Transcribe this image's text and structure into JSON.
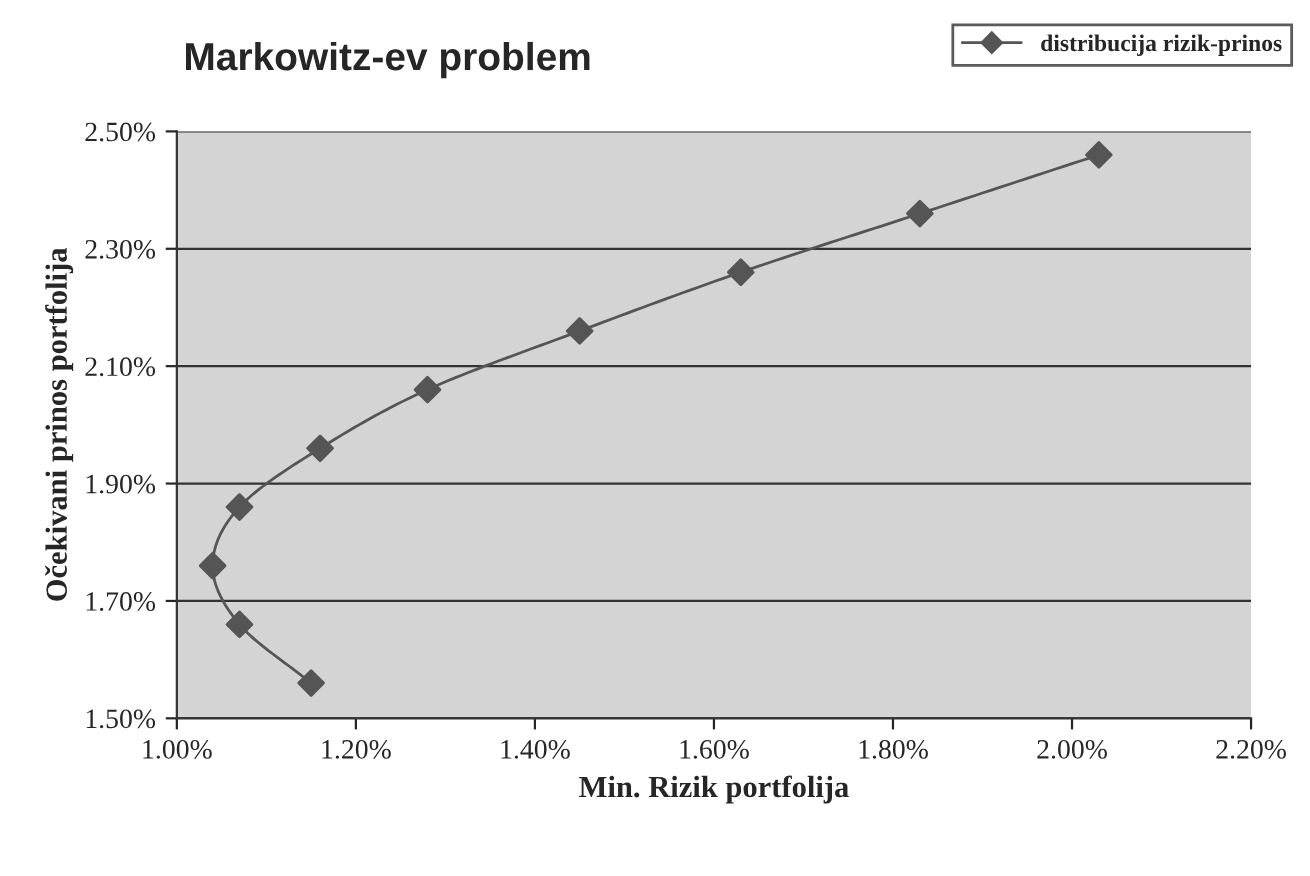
{
  "chart_data": {
    "type": "line",
    "title": "Markowitz-ev problem",
    "xlabel": "Min. Rizik portfolija",
    "ylabel": "Očekivani prinos portfolija",
    "series": [
      {
        "name": "distribucija rizik-prinos",
        "color": "#555555",
        "x": [
          1.15,
          1.07,
          1.04,
          1.07,
          1.16,
          1.28,
          1.45,
          1.63,
          1.83,
          2.03
        ],
        "values": [
          1.56,
          1.66,
          1.76,
          1.86,
          1.96,
          2.06,
          2.16,
          2.26,
          2.36,
          2.46
        ]
      }
    ],
    "xlim": [
      1.0,
      2.2
    ],
    "ylim": [
      1.5,
      2.5
    ],
    "xticks": [
      {
        "value": 1.0,
        "label": "1.00%"
      },
      {
        "value": 1.2,
        "label": "1.20%"
      },
      {
        "value": 1.4,
        "label": "1.40%"
      },
      {
        "value": 1.6,
        "label": "1.60%"
      },
      {
        "value": 1.8,
        "label": "1.80%"
      },
      {
        "value": 2.0,
        "label": "2.00%"
      },
      {
        "value": 2.2,
        "label": "2.20%"
      }
    ],
    "yticks": [
      {
        "value": 1.5,
        "label": "1.50%"
      },
      {
        "value": 1.7,
        "label": "1.70%"
      },
      {
        "value": 1.9,
        "label": "1.90%"
      },
      {
        "value": 2.1,
        "label": "2.10%"
      },
      {
        "value": 2.3,
        "label": "2.30%"
      },
      {
        "value": 2.5,
        "label": "2.50%"
      }
    ],
    "grid": "y",
    "legend": "top right",
    "marker": "diamond",
    "line_style": "solid"
  }
}
